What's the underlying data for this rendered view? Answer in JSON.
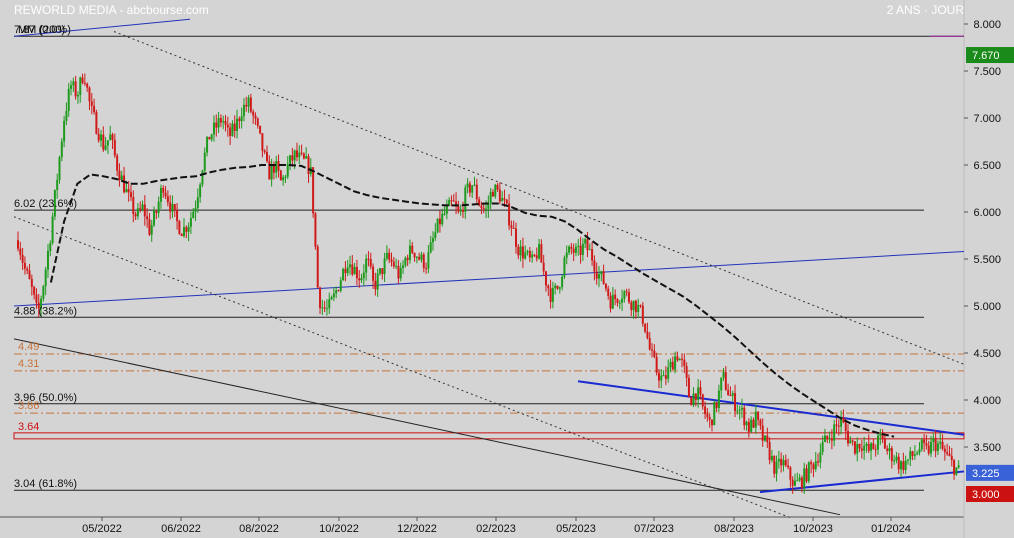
{
  "header": {
    "title": "REWORLD MEDIA - abcbourse.com",
    "period": "2 ANS · JOUR"
  },
  "chart_data": {
    "type": "candlestick",
    "ma_label": "MM (200)",
    "y_ticks": [
      "8.000",
      "7.500",
      "7.000",
      "6.500",
      "6.000",
      "5.500",
      "5.000",
      "4.500",
      "4.000",
      "3.500"
    ],
    "y_tick_values": [
      8.0,
      7.5,
      7.0,
      6.5,
      6.0,
      5.5,
      5.0,
      4.5,
      4.0,
      3.5
    ],
    "ylim": [
      2.8,
      8.12
    ],
    "x_ticks": [
      "05/2022",
      "06/2022",
      "08/2022",
      "10/2022",
      "12/2022",
      "02/2023",
      "05/2023",
      "07/2023",
      "08/2023",
      "10/2023",
      "01/2024"
    ],
    "price_badges": [
      {
        "text": "7.670",
        "value": 7.67,
        "color": "#1a8a1a"
      },
      {
        "text": "3.225",
        "value": 3.225,
        "color": "#3a62d8"
      },
      {
        "text": "3.000",
        "value": 3.0,
        "color": "#cc1111"
      }
    ],
    "fib_levels": [
      {
        "text": "7.87  (0.0%)",
        "value": 7.87
      },
      {
        "text": "6.02  (23.6%)",
        "value": 6.02
      },
      {
        "text": "4.88  (38.2%)",
        "value": 4.88
      },
      {
        "text": "3.96  (50.0%)",
        "value": 3.96
      },
      {
        "text": "3.04  (61.8%)",
        "value": 3.04
      }
    ],
    "support_levels": [
      {
        "text": "4.49",
        "value": 4.49,
        "color": "#c8743a"
      },
      {
        "text": "4.31",
        "value": 4.31,
        "color": "#c8743a"
      },
      {
        "text": "3.86",
        "value": 3.86,
        "color": "#c8743a"
      },
      {
        "text": "3.64",
        "value": 3.64,
        "color": "#cc1111"
      }
    ],
    "price_path": [
      [
        0,
        5.7
      ],
      [
        2,
        5.4
      ],
      [
        4,
        5.2
      ],
      [
        6,
        4.9
      ],
      [
        8,
        5.3
      ],
      [
        10,
        5.8
      ],
      [
        12,
        6.4
      ],
      [
        14,
        7.0
      ],
      [
        16,
        7.35
      ],
      [
        18,
        7.25
      ],
      [
        20,
        7.5
      ],
      [
        22,
        7.1
      ],
      [
        24,
        6.9
      ],
      [
        26,
        6.7
      ],
      [
        28,
        6.8
      ],
      [
        30,
        6.5
      ],
      [
        32,
        6.3
      ],
      [
        34,
        6.1
      ],
      [
        36,
        5.95
      ],
      [
        38,
        6.05
      ],
      [
        40,
        5.8
      ],
      [
        42,
        6.0
      ],
      [
        44,
        6.3
      ],
      [
        46,
        6.1
      ],
      [
        48,
        5.9
      ],
      [
        50,
        5.8
      ],
      [
        52,
        5.9
      ],
      [
        54,
        6.1
      ],
      [
        56,
        6.5
      ],
      [
        58,
        6.8
      ],
      [
        60,
        6.9
      ],
      [
        62,
        7.0
      ],
      [
        64,
        6.8
      ],
      [
        66,
        6.9
      ],
      [
        68,
        7.1
      ],
      [
        70,
        7.15
      ],
      [
        72,
        6.95
      ],
      [
        74,
        6.7
      ],
      [
        76,
        6.4
      ],
      [
        78,
        6.5
      ],
      [
        80,
        6.3
      ],
      [
        82,
        6.5
      ],
      [
        84,
        6.6
      ],
      [
        86,
        6.55
      ],
      [
        88,
        6.5
      ],
      [
        89,
        6.4
      ],
      [
        90,
        5.8
      ],
      [
        91,
        5.2
      ],
      [
        92,
        5.0
      ],
      [
        94,
        4.95
      ],
      [
        96,
        5.1
      ],
      [
        98,
        5.3
      ],
      [
        100,
        5.5
      ],
      [
        102,
        5.4
      ],
      [
        104,
        5.3
      ],
      [
        106,
        5.5
      ],
      [
        108,
        5.2
      ],
      [
        110,
        5.35
      ],
      [
        112,
        5.5
      ],
      [
        114,
        5.45
      ],
      [
        116,
        5.3
      ],
      [
        118,
        5.55
      ],
      [
        120,
        5.6
      ],
      [
        122,
        5.5
      ],
      [
        124,
        5.45
      ],
      [
        126,
        5.7
      ],
      [
        128,
        5.9
      ],
      [
        130,
        6.0
      ],
      [
        132,
        6.1
      ],
      [
        134,
        5.95
      ],
      [
        136,
        6.2
      ],
      [
        138,
        6.3
      ],
      [
        140,
        6.1
      ],
      [
        142,
        6.0
      ],
      [
        144,
        6.25
      ],
      [
        146,
        6.2
      ],
      [
        148,
        6.05
      ],
      [
        150,
        5.85
      ],
      [
        152,
        5.6
      ],
      [
        154,
        5.55
      ],
      [
        156,
        5.45
      ],
      [
        158,
        5.6
      ],
      [
        160,
        5.3
      ],
      [
        162,
        5.1
      ],
      [
        164,
        5.2
      ],
      [
        166,
        5.5
      ],
      [
        168,
        5.6
      ],
      [
        170,
        5.55
      ],
      [
        172,
        5.65
      ],
      [
        174,
        5.55
      ],
      [
        176,
        5.35
      ],
      [
        178,
        5.25
      ],
      [
        180,
        5.05
      ],
      [
        182,
        5.1
      ],
      [
        184,
        5.15
      ],
      [
        186,
        5.05
      ],
      [
        188,
        5.0
      ],
      [
        190,
        4.85
      ],
      [
        192,
        4.5
      ],
      [
        194,
        4.3
      ],
      [
        196,
        4.2
      ],
      [
        198,
        4.35
      ],
      [
        200,
        4.5
      ],
      [
        202,
        4.35
      ],
      [
        204,
        4.0
      ],
      [
        206,
        4.1
      ],
      [
        208,
        3.9
      ],
      [
        210,
        3.75
      ],
      [
        212,
        3.95
      ],
      [
        214,
        4.25
      ],
      [
        216,
        4.05
      ],
      [
        218,
        3.95
      ],
      [
        220,
        3.85
      ],
      [
        222,
        3.7
      ],
      [
        224,
        3.8
      ],
      [
        226,
        3.6
      ],
      [
        228,
        3.45
      ],
      [
        230,
        3.25
      ],
      [
        232,
        3.35
      ],
      [
        234,
        3.2
      ],
      [
        236,
        3.1
      ],
      [
        238,
        3.15
      ],
      [
        240,
        3.25
      ],
      [
        242,
        3.35
      ],
      [
        244,
        3.5
      ],
      [
        246,
        3.6
      ],
      [
        248,
        3.7
      ],
      [
        250,
        3.78
      ],
      [
        252,
        3.6
      ],
      [
        254,
        3.5
      ],
      [
        256,
        3.55
      ],
      [
        258,
        3.45
      ],
      [
        260,
        3.5
      ],
      [
        262,
        3.6
      ],
      [
        264,
        3.45
      ],
      [
        266,
        3.4
      ],
      [
        268,
        3.3
      ],
      [
        270,
        3.35
      ],
      [
        272,
        3.42
      ],
      [
        274,
        3.5
      ],
      [
        276,
        3.45
      ],
      [
        278,
        3.55
      ],
      [
        280,
        3.5
      ],
      [
        282,
        3.4
      ],
      [
        284,
        3.3
      ],
      [
        286,
        3.225
      ]
    ],
    "ma_path": [
      [
        10,
        5.25
      ],
      [
        14,
        5.9
      ],
      [
        18,
        6.3
      ],
      [
        22,
        6.4
      ],
      [
        26,
        6.38
      ],
      [
        30,
        6.35
      ],
      [
        34,
        6.3
      ],
      [
        38,
        6.3
      ],
      [
        42,
        6.33
      ],
      [
        46,
        6.35
      ],
      [
        50,
        6.37
      ],
      [
        54,
        6.38
      ],
      [
        58,
        6.42
      ],
      [
        62,
        6.45
      ],
      [
        66,
        6.47
      ],
      [
        70,
        6.48
      ],
      [
        74,
        6.5
      ],
      [
        78,
        6.5
      ],
      [
        82,
        6.5
      ],
      [
        86,
        6.49
      ],
      [
        90,
        6.43
      ],
      [
        94,
        6.36
      ],
      [
        98,
        6.29
      ],
      [
        102,
        6.22
      ],
      [
        106,
        6.18
      ],
      [
        110,
        6.15
      ],
      [
        114,
        6.13
      ],
      [
        118,
        6.11
      ],
      [
        122,
        6.09
      ],
      [
        126,
        6.08
      ],
      [
        130,
        6.07
      ],
      [
        134,
        6.07
      ],
      [
        138,
        6.08
      ],
      [
        142,
        6.09
      ],
      [
        146,
        6.09
      ],
      [
        150,
        6.05
      ],
      [
        154,
        5.99
      ],
      [
        158,
        5.96
      ],
      [
        162,
        5.95
      ],
      [
        166,
        5.9
      ],
      [
        170,
        5.81
      ],
      [
        174,
        5.7
      ],
      [
        178,
        5.6
      ],
      [
        182,
        5.52
      ],
      [
        186,
        5.43
      ],
      [
        190,
        5.34
      ],
      [
        194,
        5.26
      ],
      [
        198,
        5.18
      ],
      [
        202,
        5.1
      ],
      [
        206,
        5.0
      ],
      [
        210,
        4.89
      ],
      [
        214,
        4.78
      ],
      [
        218,
        4.66
      ],
      [
        222,
        4.53
      ],
      [
        226,
        4.4
      ],
      [
        230,
        4.28
      ],
      [
        234,
        4.17
      ],
      [
        238,
        4.07
      ],
      [
        242,
        3.98
      ],
      [
        246,
        3.89
      ],
      [
        250,
        3.8
      ],
      [
        254,
        3.73
      ],
      [
        258,
        3.68
      ],
      [
        262,
        3.64
      ],
      [
        266,
        3.61
      ]
    ]
  }
}
